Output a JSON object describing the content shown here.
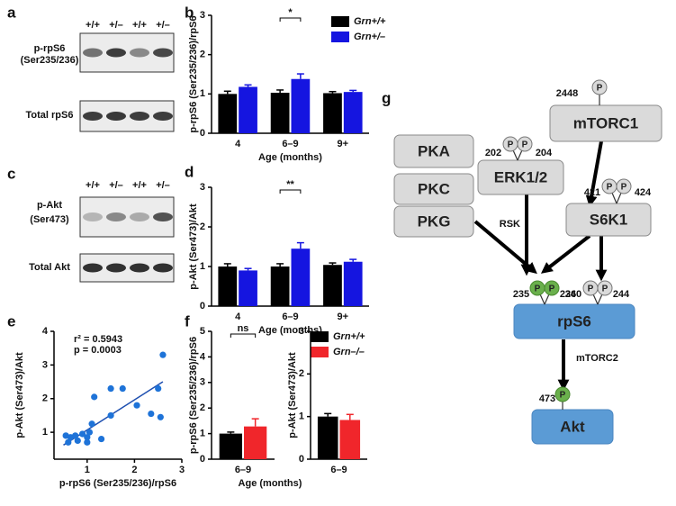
{
  "blots": [
    {
      "panel_label": "a",
      "lanes": [
        "+/+",
        "+/–",
        "+/+",
        "+/–"
      ],
      "rows": [
        {
          "lines": [
            "p-rpS6",
            "(Ser235/236)"
          ]
        },
        {
          "lines": [
            "Total rpS6"
          ]
        }
      ]
    },
    {
      "panel_label": "c",
      "lanes": [
        "+/+",
        "+/–",
        "+/+",
        "+/–"
      ],
      "rows": [
        {
          "lines": [
            "p-Akt",
            "(Ser473)"
          ]
        },
        {
          "lines": [
            "Total Akt"
          ]
        }
      ]
    }
  ],
  "chart_data": [
    {
      "type": "bar",
      "panel_label": "b",
      "y_label": "p-rpS6 (Ser235/236)/rpS6",
      "x_label": "Age (months)",
      "categories": [
        "4",
        "6–9",
        "9+"
      ],
      "series": [
        {
          "name": "Grn+/+",
          "color": "#000000",
          "values": [
            1.0,
            1.03,
            1.02
          ],
          "errors": [
            0.07,
            0.07,
            0.04
          ]
        },
        {
          "name": "Grn+/–",
          "color": "#1515e0",
          "values": [
            1.18,
            1.38,
            1.05
          ],
          "errors": [
            0.05,
            0.13,
            0.04
          ]
        }
      ],
      "ylim": [
        0,
        3
      ],
      "yticks": [
        0,
        1,
        2,
        3
      ],
      "annotations": [
        {
          "text": "*",
          "category": "6–9"
        }
      ]
    },
    {
      "type": "bar",
      "panel_label": "d",
      "y_label": "p-Akt (Ser473)/Akt",
      "x_label": "Age (months)",
      "categories": [
        "4",
        "6–9",
        "9+"
      ],
      "series": [
        {
          "color": "#000000",
          "values": [
            1.0,
            1.0,
            1.04
          ],
          "errors": [
            0.07,
            0.07,
            0.05
          ]
        },
        {
          "color": "#1515e0",
          "values": [
            0.9,
            1.45,
            1.12
          ],
          "errors": [
            0.05,
            0.15,
            0.06
          ]
        }
      ],
      "ylim": [
        0,
        3
      ],
      "yticks": [
        0,
        1,
        2,
        3
      ],
      "annotations": [
        {
          "text": "**",
          "category": "6–9"
        }
      ]
    },
    {
      "type": "scatter",
      "panel_label": "e",
      "y_label": "p-Akt (Ser473)/Akt",
      "x_label": "p-rpS6 (Ser235/236)/rpS6",
      "color": "#1e73d8",
      "x": [
        0.55,
        0.6,
        0.65,
        0.75,
        0.8,
        0.9,
        1.0,
        1.0,
        1.05,
        1.1,
        1.15,
        1.3,
        1.5,
        1.5,
        1.75,
        2.05,
        2.35,
        2.5,
        2.55,
        2.6
      ],
      "values": [
        0.9,
        0.7,
        0.85,
        0.9,
        0.75,
        0.95,
        0.7,
        0.85,
        1.0,
        1.25,
        2.05,
        0.8,
        2.3,
        1.5,
        2.3,
        1.8,
        1.55,
        2.3,
        1.45,
        3.3
      ],
      "trendline": {
        "x": [
          0.5,
          2.6
        ],
        "y": [
          0.62,
          2.5
        ]
      },
      "annotations": [
        "r² = 0.5943",
        "p = 0.0003"
      ],
      "xlim": [
        0.3,
        3
      ],
      "xticks": [
        1,
        2,
        3
      ],
      "ylim": [
        0.2,
        4
      ],
      "yticks": [
        1,
        2,
        3,
        4
      ]
    },
    {
      "type": "bar",
      "panel_label": "f",
      "y_label": "p-rpS6 (Ser235/236)/rpS6",
      "x_label": "Age (months)",
      "categories": [
        "6–9"
      ],
      "series": [
        {
          "name": "Grn+/+",
          "color": "#000000",
          "values": [
            1.0
          ],
          "errors": [
            0.06
          ]
        },
        {
          "name": "Grn–/–",
          "color": "#f0262b",
          "values": [
            1.28
          ],
          "errors": [
            0.3
          ]
        }
      ],
      "ylim": [
        0,
        5
      ],
      "yticks": [
        0,
        1,
        2,
        3,
        4,
        5
      ],
      "annotations": [
        {
          "text": "ns",
          "category": "6–9"
        }
      ]
    },
    {
      "type": "bar",
      "y_label": "p-Akt (Ser473)/Akt",
      "categories": [
        "6–9"
      ],
      "series": [
        {
          "color": "#000000",
          "values": [
            1.0
          ],
          "errors": [
            0.07
          ]
        },
        {
          "color": "#f0262b",
          "values": [
            0.92
          ],
          "errors": [
            0.13
          ]
        }
      ],
      "ylim": [
        0,
        3
      ],
      "yticks": [
        0,
        1,
        2,
        3
      ]
    }
  ],
  "diagram": {
    "panel_label": "g",
    "nodes": [
      "PKA",
      "PKC",
      "PKG",
      "ERK1/2",
      "mTORC1",
      "S6K1",
      "rpS6",
      "Akt"
    ],
    "phospho_symbol": "P",
    "sites": [
      "2448",
      "202",
      "204",
      "421",
      "424",
      "235",
      "236",
      "240",
      "244",
      "473"
    ],
    "edge_labels": [
      "RSK",
      "mTORC2"
    ]
  }
}
